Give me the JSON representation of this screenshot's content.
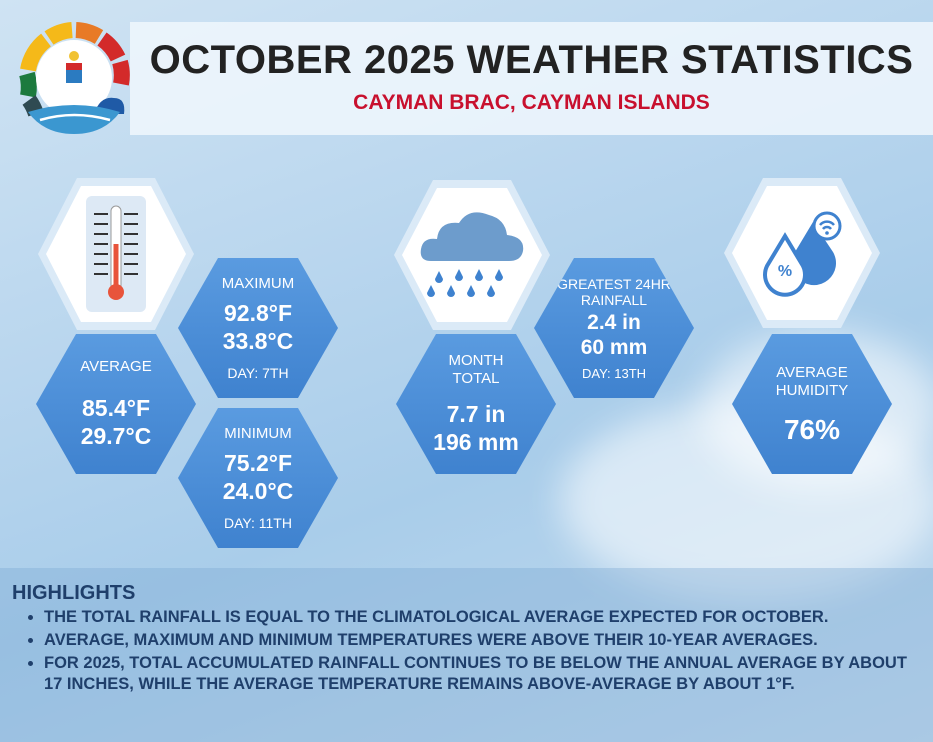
{
  "header": {
    "title": "OCTOBER 2025 WEATHER STATISTICS",
    "subtitle": "CAYMAN BRAC, CAYMAN ISLANDS"
  },
  "temperature": {
    "average": {
      "label": "AVERAGE",
      "f": "85.4°F",
      "c": "29.7°C"
    },
    "maximum": {
      "label": "MAXIMUM",
      "f": "92.8°F",
      "c": "33.8°C",
      "day": "DAY: 7TH"
    },
    "minimum": {
      "label": "MINIMUM",
      "f": "75.2°F",
      "c": "24.0°C",
      "day": "DAY: 11TH"
    }
  },
  "rainfall": {
    "month_total": {
      "label1": "MONTH",
      "label2": "TOTAL",
      "in": "7.7 in",
      "mm": "196 mm"
    },
    "greatest": {
      "label1": "GREATEST 24HR",
      "label2": "RAINFALL",
      "in": "2.4 in",
      "mm": "60 mm",
      "day": "DAY: 13TH"
    }
  },
  "humidity": {
    "label1": "AVERAGE",
    "label2": "HUMIDITY",
    "value": "76%"
  },
  "highlights": {
    "title": "HIGHLIGHTS",
    "items": [
      "THE TOTAL RAINFALL IS EQUAL TO THE CLIMATOLOGICAL AVERAGE EXPECTED FOR OCTOBER.",
      "AVERAGE, MAXIMUM AND MINIMUM TEMPERATURES WERE ABOVE THEIR 10-YEAR AVERAGES.",
      "FOR 2025, TOTAL ACCUMULATED RAINFALL CONTINUES TO BE BELOW THE ANNUAL AVERAGE BY ABOUT 17 INCHES, WHILE THE AVERAGE TEMPERATURE REMAINS ABOVE-AVERAGE BY ABOUT 1°F."
    ]
  }
}
